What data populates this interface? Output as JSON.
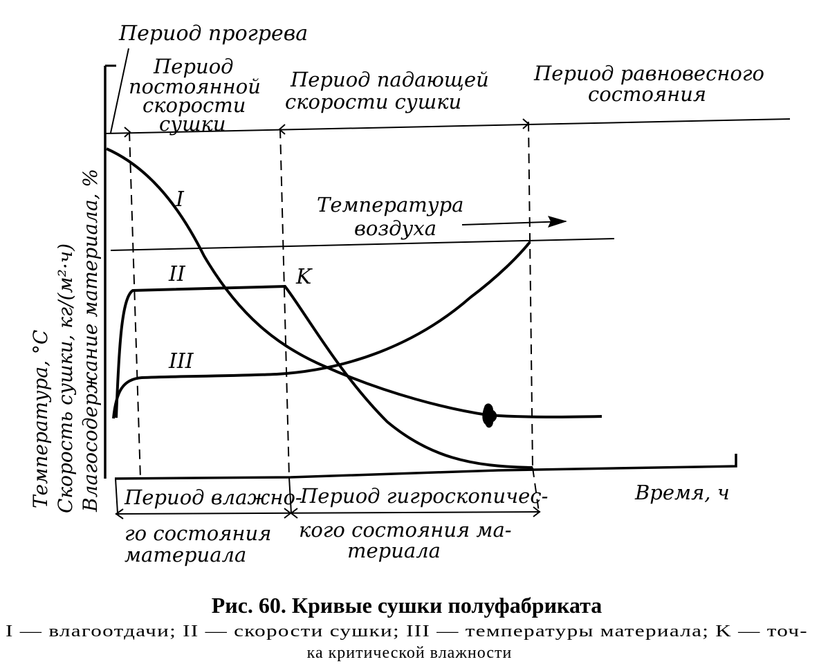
{
  "periods": {
    "heating": "Период прогрева",
    "constant_rate": [
      "Период",
      "постоянной",
      "скорости",
      "сушки"
    ],
    "falling_rate": [
      "Период падающей",
      "скорости сушки"
    ],
    "equilibrium": [
      "Период равновесного",
      "состояния"
    ]
  },
  "bottom_periods": {
    "wet_state": [
      "Период влажно-",
      "го состояния",
      "материала"
    ],
    "hygroscopic_state": [
      "Период гигроскопичес-",
      "кого состояния ма-",
      "териала"
    ]
  },
  "air_temperature": [
    "Температура",
    "воздуха"
  ],
  "axes": {
    "x_label": "Время, ч",
    "y_labels": [
      "Температура, °С",
      "Скорость сушки, кг/(м²·ч)",
      "Влагосодержание материала, %"
    ]
  },
  "curves": {
    "moisture_loss": "I",
    "drying_rate": "II",
    "material_temperature": "III",
    "critical_point": "K"
  },
  "caption": {
    "title": "Рис. 60. Кривые сушки полуфабриката",
    "line1": "I — влагоотдачи; II — скорости сушки; III — температуры материала; K — точ-",
    "line2": "ка критической влажности"
  }
}
